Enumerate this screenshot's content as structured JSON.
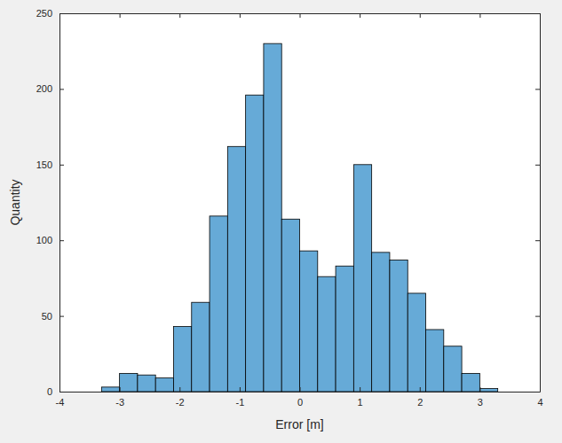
{
  "chart_data": {
    "type": "histogram",
    "x_label": "Error [m]",
    "y_label": "Quantity",
    "bins": [
      -3.3,
      -3,
      -2.7,
      -2.4,
      -2.1,
      -1.8,
      -1.5,
      -1.2,
      -0.9,
      -0.6,
      -0.3,
      0,
      0.3,
      0.6,
      0.9,
      1.2,
      1.5,
      1.8,
      2.1,
      2.4,
      2.7,
      3,
      3.3
    ],
    "values": [
      3,
      12,
      11,
      9,
      43,
      59,
      116,
      162,
      196,
      230,
      114,
      93,
      76,
      83,
      150,
      92,
      87,
      65,
      41,
      30,
      12,
      2
    ],
    "color": "#66aad7",
    "xlim": [
      -4,
      4
    ],
    "xticks": [
      -4,
      -3,
      -2,
      -1,
      0,
      1,
      2,
      3,
      4
    ],
    "ylim": [
      0,
      250
    ],
    "yticks": [
      0,
      50,
      100,
      150,
      200,
      250
    ],
    "grid": false
  }
}
